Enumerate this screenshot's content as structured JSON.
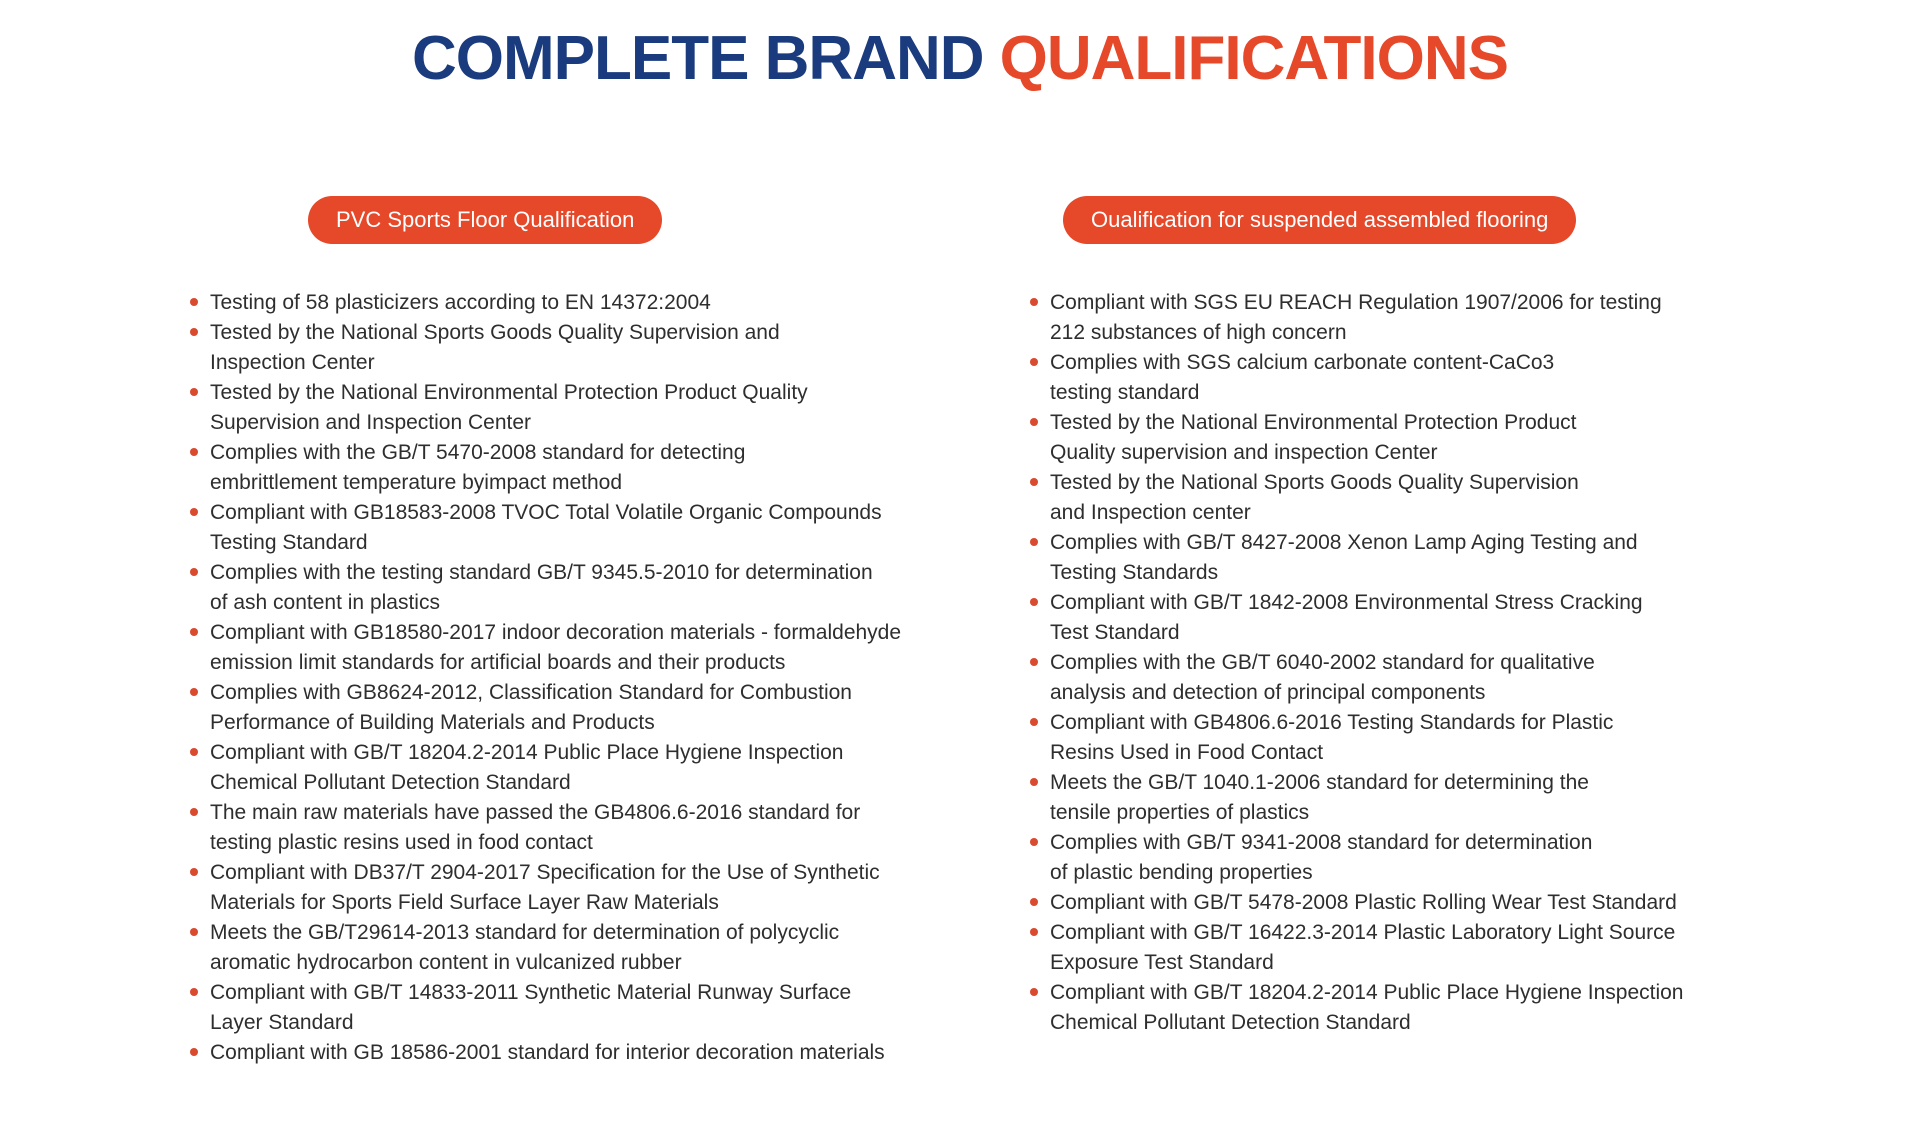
{
  "title": {
    "part1": "COMPLETE BRAND",
    "part2": "QUALIFICATIONS"
  },
  "colors": {
    "navy": "#1A3B7D",
    "orange": "#E6482A",
    "bullet": "#D94A2E",
    "text": "#2E2E2E"
  },
  "columns": [
    {
      "badge": "PVC Sports Floor Qualification",
      "items": [
        "Testing of 58 plasticizers according to EN 14372:2004",
        "Tested by the National Sports Goods Quality Supervision and\nInspection Center",
        "Tested by the National Environmental Protection Product Quality\nSupervision and Inspection Center",
        "Complies with the GB/T 5470-2008 standard for detecting\nembrittlement temperature byimpact method",
        "Compliant with GB18583-2008 TVOC Total Volatile Organic Compounds\nTesting Standard",
        "Complies with the testing standard GB/T 9345.5-2010 for determination\nof ash content in plastics",
        "Compliant with GB18580-2017 indoor decoration materials - formaldehyde\nemission limit standards for artificial boards and their products",
        "Complies with GB8624-2012, Classification Standard for Combustion\nPerformance of Building Materials and Products",
        "Compliant with GB/T 18204.2-2014 Public Place Hygiene Inspection\nChemical Pollutant Detection Standard",
        "The main raw materials have passed the GB4806.6-2016 standard for\ntesting plastic resins used in food contact",
        "Compliant with DB37/T 2904-2017 Specification for the Use of Synthetic\nMaterials for Sports Field Surface Layer Raw Materials",
        "Meets the GB/T29614-2013 standard for determination of polycyclic\naromatic hydrocarbon content in vulcanized rubber",
        "Compliant with GB/T 14833-2011 Synthetic Material Runway Surface\nLayer Standard",
        "Compliant with GB 18586-2001 standard for interior decoration materials"
      ]
    },
    {
      "badge": "Oualification for suspended assembled flooring",
      "items": [
        "Compliant with SGS EU REACH Regulation 1907/2006 for testing\n212 substances of high concern",
        "Complies with SGS calcium carbonate content-CaCo3\ntesting standard",
        "Tested by the National Environmental Protection Product\nQuality supervision and inspection Center",
        "Tested by the National Sports Goods Quality Supervision\nand Inspection center",
        "Complies with GB/T 8427-2008 Xenon Lamp Aging Testing and\nTesting Standards",
        "Compliant with GB/T 1842-2008 Environmental Stress Cracking\nTest Standard",
        "Complies with the GB/T 6040-2002 standard for qualitative\nanalysis and detection of principal components",
        "Compliant with GB4806.6-2016 Testing Standards for Plastic\nResins Used in Food Contact",
        "Meets the GB/T 1040.1-2006 standard for determining the\ntensile properties of plastics",
        "Complies with GB/T 9341-2008 standard for determination\nof plastic bending properties",
        "Compliant with GB/T 5478-2008 Plastic Rolling Wear Test Standard",
        "Compliant with GB/T 16422.3-2014 Plastic Laboratory Light Source\nExposure Test Standard",
        "Compliant with GB/T 18204.2-2014 Public Place Hygiene Inspection\nChemical Pollutant Detection Standard"
      ]
    }
  ]
}
